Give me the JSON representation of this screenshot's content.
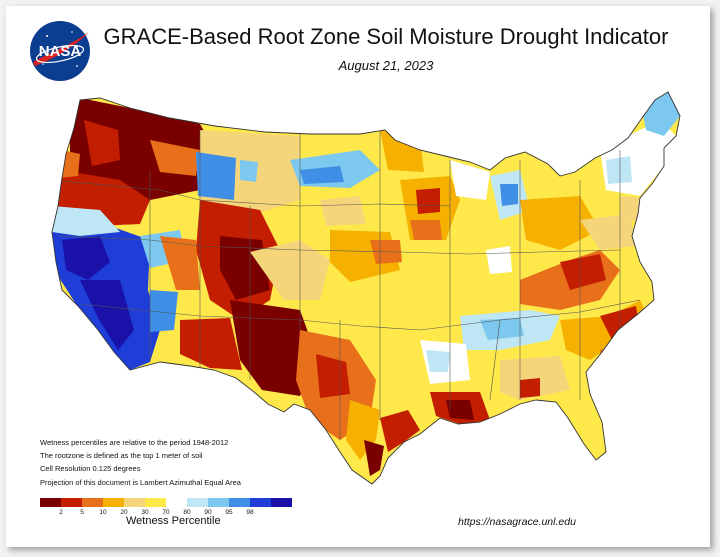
{
  "header": {
    "title": "GRACE-Based Root Zone Soil  Moisture Drought Indicator",
    "date": "August 21, 2023",
    "logo_text": "NASA"
  },
  "notes": [
    "Wetness percentiles are relative to the period 1948-2012",
    "The rootzone is defined as the top 1 meter of soil",
    "Cell Resolution 0.125 degrees",
    "Projection of this document is Lambert Azimuthal Equal Area"
  ],
  "legend": {
    "label": "Wetness Percentile",
    "ticks": [
      "2",
      "5",
      "10",
      "20",
      "30",
      "70",
      "80",
      "90",
      "95",
      "98"
    ],
    "colors": [
      "#7a0000",
      "#c41e00",
      "#e8701a",
      "#f5b000",
      "#f5d57a",
      "#ffe84a",
      "#ffffff",
      "#bfe6f5",
      "#7cc8ee",
      "#3f8fe6",
      "#1f3ed8",
      "#1a12a8"
    ]
  },
  "source_url": "https://nasagrace.unl.edu",
  "map": {
    "colors": {
      "dark_red": "#7a0000",
      "red": "#c41e00",
      "orange": "#e8701a",
      "amber": "#f5b000",
      "tan": "#f5d57a",
      "yellow": "#ffe84a",
      "white": "#ffffff",
      "light_blue": "#bfe6f5",
      "sky_blue": "#7cc8ee",
      "blue": "#3f8fe6",
      "royal_blue": "#1f3ed8",
      "navy": "#1a12a8",
      "border": "#555555"
    }
  }
}
